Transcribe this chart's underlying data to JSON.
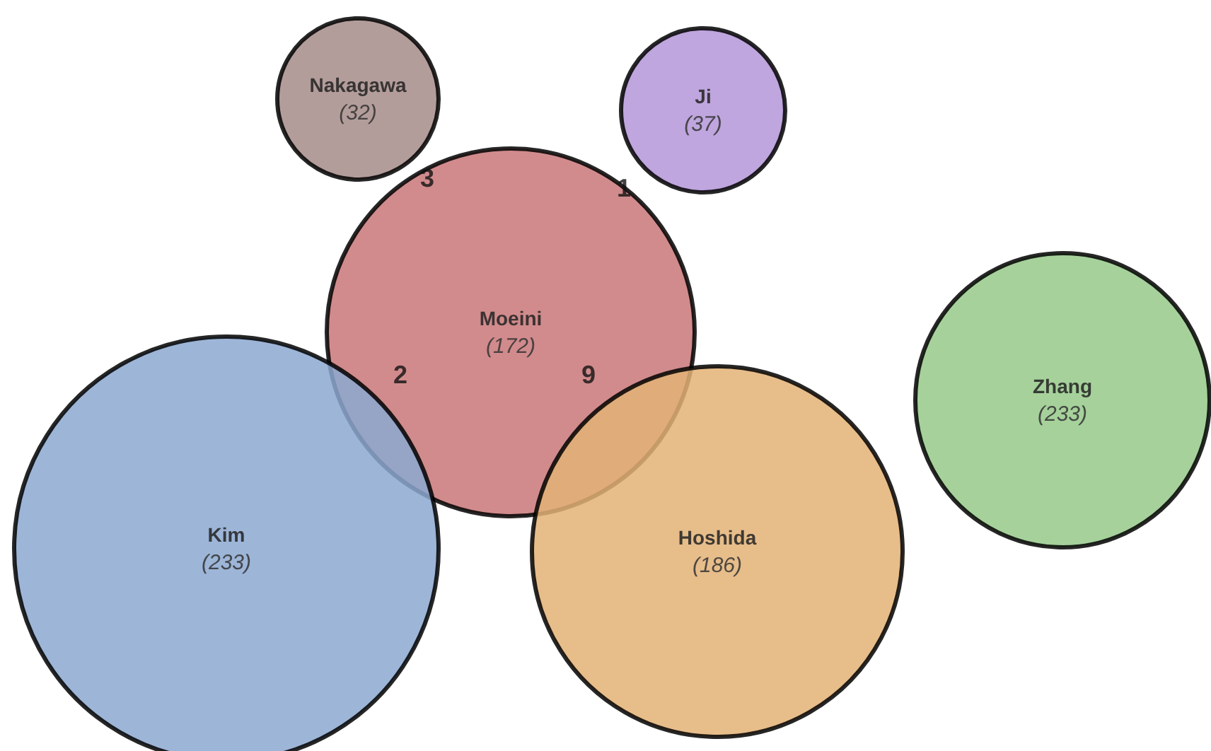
{
  "chart_data": {
    "type": "other",
    "categories": [
      "Nakagawa",
      "Ji",
      "Moeini",
      "Kim",
      "Hoshida",
      "Zhang"
    ],
    "values": [
      32,
      37,
      172,
      233,
      186,
      233
    ],
    "value_labels": [
      "(32)",
      "(37)",
      "(172)",
      "(233)",
      "(186)",
      "(233)"
    ],
    "colors": [
      "#a68c88",
      "#b497d8",
      "#c97778",
      "#8ca8d0",
      "#e3b276",
      "#97c98a"
    ],
    "annotations": [
      "3",
      "1",
      "2",
      "9"
    ]
  }
}
